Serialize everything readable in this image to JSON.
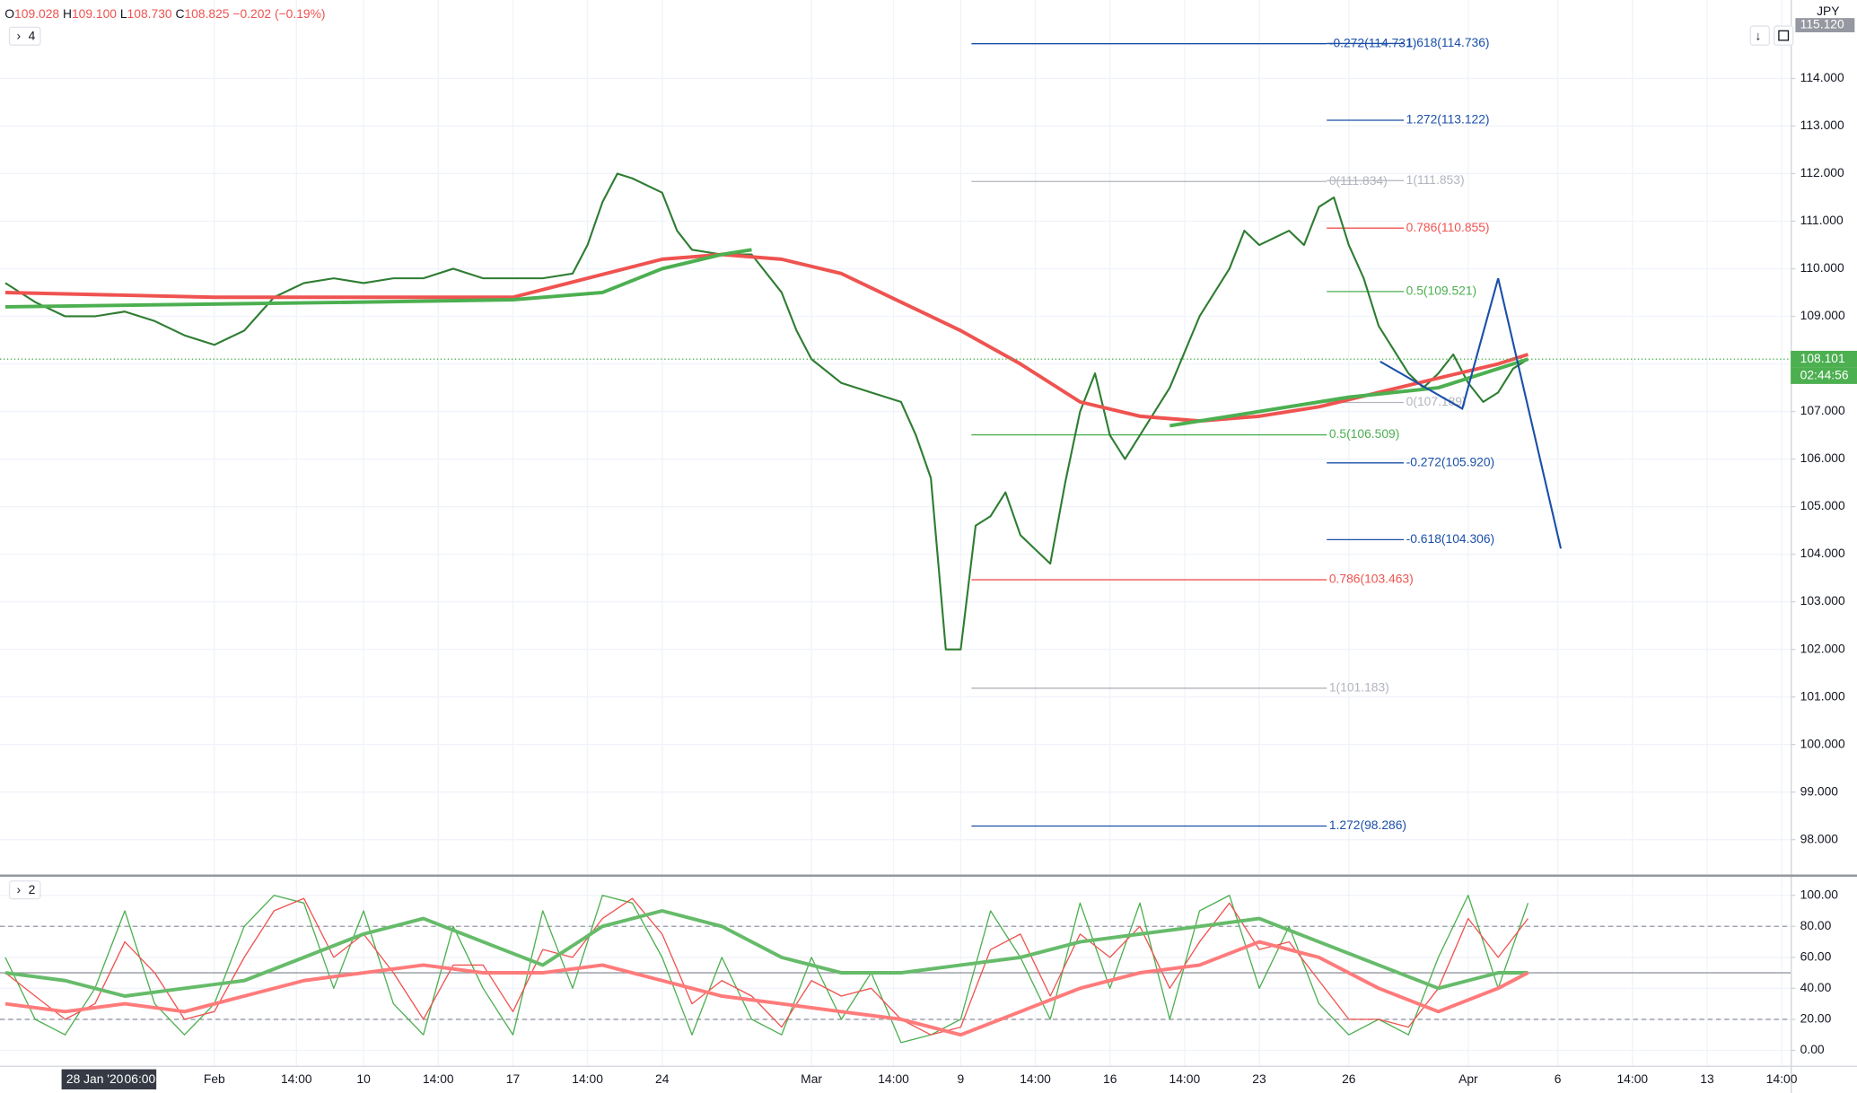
{
  "header": {
    "ohlc": [
      {
        "key": "O",
        "value": "109.028"
      },
      {
        "key": "H",
        "value": "109.100"
      },
      {
        "key": "L",
        "value": "108.730"
      },
      {
        "key": "C",
        "value": "108.825"
      }
    ],
    "change": "−0.202 (−0.19%)",
    "price_pane_label": "4",
    "oscillator_pane_label": "2",
    "currency": "JPY",
    "crosshair_date": "28 Jan '20",
    "crosshair_time": "06:00"
  },
  "chart_data": [
    {
      "type": "line",
      "xlim": [
        -7.18,
        52.8
      ],
      "ylim": [
        97.28,
        115.3
      ],
      "grid": true,
      "xticks": [
        {
          "value": 0,
          "label": "Feb"
        },
        {
          "value": 2.75,
          "label": "14:00"
        },
        {
          "value": 5,
          "label": "10"
        },
        {
          "value": 7.5,
          "label": "14:00"
        },
        {
          "value": 10,
          "label": "17"
        },
        {
          "value": 12.5,
          "label": "14:00"
        },
        {
          "value": 15,
          "label": "24"
        },
        {
          "value": 20,
          "label": "Mar"
        },
        {
          "value": 22.75,
          "label": "14:00"
        },
        {
          "value": 25,
          "label": "9"
        },
        {
          "value": 27.5,
          "label": "14:00"
        },
        {
          "value": 30,
          "label": "16"
        },
        {
          "value": 32.5,
          "label": "14:00"
        },
        {
          "value": 35,
          "label": "23"
        },
        {
          "value": 38,
          "label": "26"
        },
        {
          "value": 42,
          "label": "Apr"
        },
        {
          "value": 45,
          "label": "6"
        },
        {
          "value": 47.5,
          "label": "14:00"
        },
        {
          "value": 50,
          "label": "13"
        },
        {
          "value": 52.5,
          "label": "14:00"
        }
      ],
      "yticks": [
        {
          "value": 98,
          "label": "98.000"
        },
        {
          "value": 99,
          "label": "99.000"
        },
        {
          "value": 100,
          "label": "100.000"
        },
        {
          "value": 101,
          "label": "101.000"
        },
        {
          "value": 102,
          "label": "102.000"
        },
        {
          "value": 103,
          "label": "103.000"
        },
        {
          "value": 104,
          "label": "104.000"
        },
        {
          "value": 105,
          "label": "105.000"
        },
        {
          "value": 106,
          "label": "106.000"
        },
        {
          "value": 107,
          "label": "107.000"
        },
        {
          "value": 108,
          "label": "108.000"
        },
        {
          "value": 109,
          "label": "109.000"
        },
        {
          "value": 110,
          "label": "110.000"
        },
        {
          "value": 111,
          "label": "111.000"
        },
        {
          "value": 112,
          "label": "112.000"
        },
        {
          "value": 113,
          "label": "113.000"
        },
        {
          "value": 114,
          "label": "114.000"
        }
      ],
      "series": [
        {
          "color": "#2e7d32",
          "width": 1.6,
          "x": [
            -7,
            -6,
            -5,
            -4,
            -3,
            -2,
            -1,
            0,
            1,
            2,
            3,
            4,
            5,
            6,
            7,
            8,
            9,
            10,
            11,
            12,
            12.5,
            13,
            13.5,
            14,
            15,
            15.5,
            16,
            17,
            18,
            19,
            19.5,
            20,
            21,
            22,
            23,
            23.5,
            24,
            24.5,
            25,
            25.5,
            26,
            26.5,
            27,
            28,
            28.5,
            29,
            29.5,
            30,
            30.5,
            31,
            32,
            33,
            34,
            34.5,
            35,
            36,
            36.5,
            37,
            37.5,
            38,
            38.5,
            39,
            40,
            40.5,
            41,
            41.5,
            42,
            42.5,
            43,
            43.5,
            44
          ],
          "values": [
            109.7,
            109.3,
            109.0,
            109.0,
            109.1,
            108.9,
            108.6,
            108.4,
            108.7,
            109.4,
            109.7,
            109.8,
            109.7,
            109.8,
            109.8,
            110.0,
            109.8,
            109.8,
            109.8,
            109.9,
            110.5,
            111.4,
            112.0,
            111.9,
            111.6,
            110.8,
            110.4,
            110.3,
            110.3,
            109.5,
            108.7,
            108.1,
            107.6,
            107.4,
            107.2,
            106.5,
            105.6,
            102.0,
            102.0,
            104.6,
            104.8,
            105.3,
            104.4,
            103.8,
            105.5,
            107.0,
            107.8,
            106.5,
            106.0,
            106.5,
            107.5,
            109.0,
            110.0,
            110.8,
            110.5,
            110.8,
            110.5,
            111.3,
            111.5,
            110.5,
            109.8,
            108.8,
            107.8,
            107.5,
            107.8,
            108.2,
            107.6,
            107.2,
            107.4,
            107.9,
            108.1
          ]
        },
        {
          "color": "#ef5350",
          "width": 3,
          "x": [
            -7,
            0,
            5,
            10,
            15,
            17,
            19,
            21,
            23,
            25,
            27,
            29,
            31,
            33,
            35,
            37,
            39,
            41,
            43,
            44
          ],
          "values": [
            109.5,
            109.4,
            109.4,
            109.4,
            110.2,
            110.3,
            110.2,
            109.9,
            109.3,
            108.7,
            108.0,
            107.2,
            106.9,
            106.8,
            106.9,
            107.1,
            107.4,
            107.7,
            108.0,
            108.2
          ]
        },
        {
          "color": "#4caf50",
          "width": 3,
          "x": [
            -7,
            5,
            10,
            13,
            15,
            17,
            18,
            20,
            32,
            35,
            38,
            41,
            44
          ],
          "values": [
            109.2,
            109.3,
            109.35,
            109.5,
            110.0,
            110.3,
            110.4,
            null,
            106.7,
            107.0,
            107.3,
            107.5,
            108.1
          ]
        }
      ],
      "annotations": [
        {
          "label": "-0.272(114.731)",
          "value": 114.731,
          "color": "#1b4fa8",
          "xrange": [
            25.36,
            37.26
          ]
        },
        {
          "label": "0(111.834)",
          "value": 111.834,
          "color": "#b2b5be",
          "xrange": [
            25.36,
            37.26
          ]
        },
        {
          "label": "0.5(106.509)",
          "value": 106.509,
          "color": "#4caf50",
          "xrange": [
            25.36,
            37.26
          ]
        },
        {
          "label": "0.786(103.463)",
          "value": 103.463,
          "color": "#ef5350",
          "xrange": [
            25.36,
            37.26
          ]
        },
        {
          "label": "1(101.183)",
          "value": 101.183,
          "color": "#b2b5be",
          "xrange": [
            25.36,
            37.26
          ]
        },
        {
          "label": "1.272(98.286)",
          "value": 98.286,
          "color": "#1b4fa8",
          "xrange": [
            25.36,
            37.26
          ]
        },
        {
          "label": "1.618(114.736)",
          "value": 114.736,
          "color": "#1b4fa8",
          "xrange": [
            37.26,
            39.84
          ]
        },
        {
          "label": "1.272(113.122)",
          "value": 113.122,
          "color": "#1b4fa8",
          "xrange": [
            37.26,
            39.84
          ]
        },
        {
          "label": "1(111.853)",
          "value": 111.853,
          "color": "#b2b5be",
          "xrange": [
            37.26,
            39.84
          ]
        },
        {
          "label": "0.786(110.855)",
          "value": 110.855,
          "color": "#ef5350",
          "xrange": [
            37.26,
            39.84
          ]
        },
        {
          "label": "0.5(109.521)",
          "value": 109.521,
          "color": "#4caf50",
          "xrange": [
            37.26,
            39.84
          ]
        },
        {
          "label": "0(107.189)",
          "value": 107.189,
          "color": "#b2b5be",
          "xrange": [
            37.26,
            39.84
          ]
        },
        {
          "label": "-0.272(105.920)",
          "value": 105.92,
          "color": "#1b4fa8",
          "xrange": [
            37.26,
            39.84
          ]
        },
        {
          "label": "-0.618(104.306)",
          "value": 104.306,
          "color": "#1b4fa8",
          "xrange": [
            37.26,
            39.84
          ]
        }
      ],
      "pattern": {
        "color": "#1b4fa8",
        "x": [
          39.05,
          41.8,
          43.0,
          45.1
        ],
        "values": [
          108.05,
          107.06,
          109.8,
          104.12
        ]
      },
      "last_price": {
        "value": 108.101,
        "label": "108.101",
        "color": "#4caf50"
      },
      "countdown": "02:44:56",
      "top_label": {
        "value": 115.12,
        "label": "115.120"
      }
    },
    {
      "type": "line",
      "xlim": [
        -7.18,
        52.8
      ],
      "ylim": [
        -9.9,
        111.5
      ],
      "yticks": [
        {
          "value": 0,
          "label": "0.00"
        },
        {
          "value": 20,
          "label": "20.00"
        },
        {
          "value": 40,
          "label": "40.00"
        },
        {
          "value": 60,
          "label": "60.00"
        },
        {
          "value": 80,
          "label": "80.00"
        },
        {
          "value": 100,
          "label": "100.00"
        }
      ],
      "levels": [
        {
          "value": 80,
          "dashed": true
        },
        {
          "value": 50,
          "dashed": false
        },
        {
          "value": 20,
          "dashed": true
        }
      ],
      "series": [
        {
          "color": "#4caf50",
          "width": 1,
          "x": [
            -7,
            -6,
            -5,
            -4,
            -3,
            -2,
            -1,
            0,
            1,
            2,
            3,
            4,
            5,
            6,
            7,
            8,
            9,
            10,
            11,
            12,
            13,
            14,
            15,
            16,
            17,
            18,
            19,
            20,
            21,
            22,
            23,
            24,
            25,
            26,
            27,
            28,
            29,
            30,
            31,
            32,
            33,
            34,
            35,
            36,
            37,
            38,
            39,
            40,
            41,
            42,
            43,
            44
          ],
          "values": [
            60,
            20,
            10,
            40,
            90,
            30,
            10,
            30,
            80,
            100,
            95,
            40,
            90,
            30,
            10,
            80,
            40,
            10,
            90,
            40,
            100,
            95,
            60,
            10,
            60,
            20,
            10,
            60,
            20,
            50,
            5,
            10,
            20,
            90,
            60,
            20,
            95,
            40,
            95,
            20,
            90,
            100,
            40,
            80,
            30,
            10,
            20,
            10,
            60,
            100,
            40,
            95
          ]
        },
        {
          "color": "#ef5350",
          "width": 1,
          "x": [
            -7,
            -6,
            -5,
            -4,
            -3,
            -2,
            -1,
            0,
            1,
            2,
            3,
            4,
            5,
            6,
            7,
            8,
            9,
            10,
            11,
            12,
            13,
            14,
            15,
            16,
            17,
            18,
            19,
            20,
            21,
            22,
            23,
            24,
            25,
            26,
            27,
            28,
            29,
            30,
            31,
            32,
            33,
            34,
            35,
            36,
            37,
            38,
            39,
            40,
            41,
            42,
            43,
            44
          ],
          "values": [
            50,
            35,
            20,
            30,
            70,
            50,
            20,
            25,
            60,
            90,
            98,
            60,
            75,
            50,
            20,
            55,
            55,
            25,
            65,
            60,
            85,
            98,
            75,
            30,
            45,
            35,
            15,
            45,
            35,
            40,
            20,
            10,
            15,
            65,
            75,
            35,
            75,
            60,
            80,
            40,
            70,
            95,
            65,
            70,
            45,
            20,
            20,
            15,
            40,
            85,
            60,
            85
          ]
        },
        {
          "color": "#66bb6a",
          "width": 3,
          "x": [
            -7,
            -5,
            -3,
            -1,
            1,
            3,
            5,
            7,
            9,
            11,
            13,
            15,
            17,
            19,
            21,
            23,
            25,
            27,
            29,
            31,
            33,
            35,
            37,
            39,
            41,
            43,
            44
          ],
          "values": [
            50,
            45,
            35,
            40,
            45,
            60,
            75,
            85,
            70,
            55,
            80,
            90,
            80,
            60,
            50,
            50,
            55,
            60,
            70,
            75,
            80,
            85,
            70,
            55,
            40,
            50,
            50
          ]
        },
        {
          "color": "#ff7b7b",
          "width": 3,
          "x": [
            -7,
            -5,
            -3,
            -1,
            1,
            3,
            5,
            7,
            9,
            11,
            13,
            15,
            17,
            19,
            21,
            23,
            25,
            27,
            29,
            31,
            33,
            35,
            37,
            39,
            41,
            43,
            44
          ],
          "values": [
            30,
            25,
            30,
            25,
            35,
            45,
            50,
            55,
            50,
            50,
            55,
            45,
            35,
            30,
            25,
            20,
            10,
            25,
            40,
            50,
            55,
            70,
            60,
            40,
            25,
            40,
            50
          ]
        }
      ]
    }
  ]
}
